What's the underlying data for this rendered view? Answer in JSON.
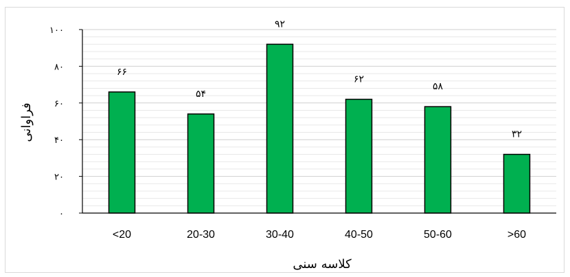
{
  "chart_data": {
    "type": "bar",
    "categories": [
      "<20",
      "20-30",
      "30-40",
      "40-50",
      "50-60",
      ">60"
    ],
    "values": [
      66,
      54,
      92,
      62,
      58,
      32
    ],
    "data_labels": [
      "۶۶",
      "۵۴",
      "۹۲",
      "۶۲",
      "۵۸",
      "۳۲"
    ],
    "y_tick_labels": [
      "۰",
      "۲۰",
      "۴۰",
      "۶۰",
      "۸۰",
      "۱۰۰"
    ],
    "y_tick_values": [
      0,
      20,
      40,
      60,
      80,
      100
    ],
    "xlabel": "کلاسه سنی",
    "ylabel": "فراوانی",
    "ylim": [
      0,
      100
    ],
    "minor_gridlines": true,
    "bar_color": "#00b050",
    "bar_edge_color": "#000000",
    "grid_color": "#d9d9d9"
  }
}
